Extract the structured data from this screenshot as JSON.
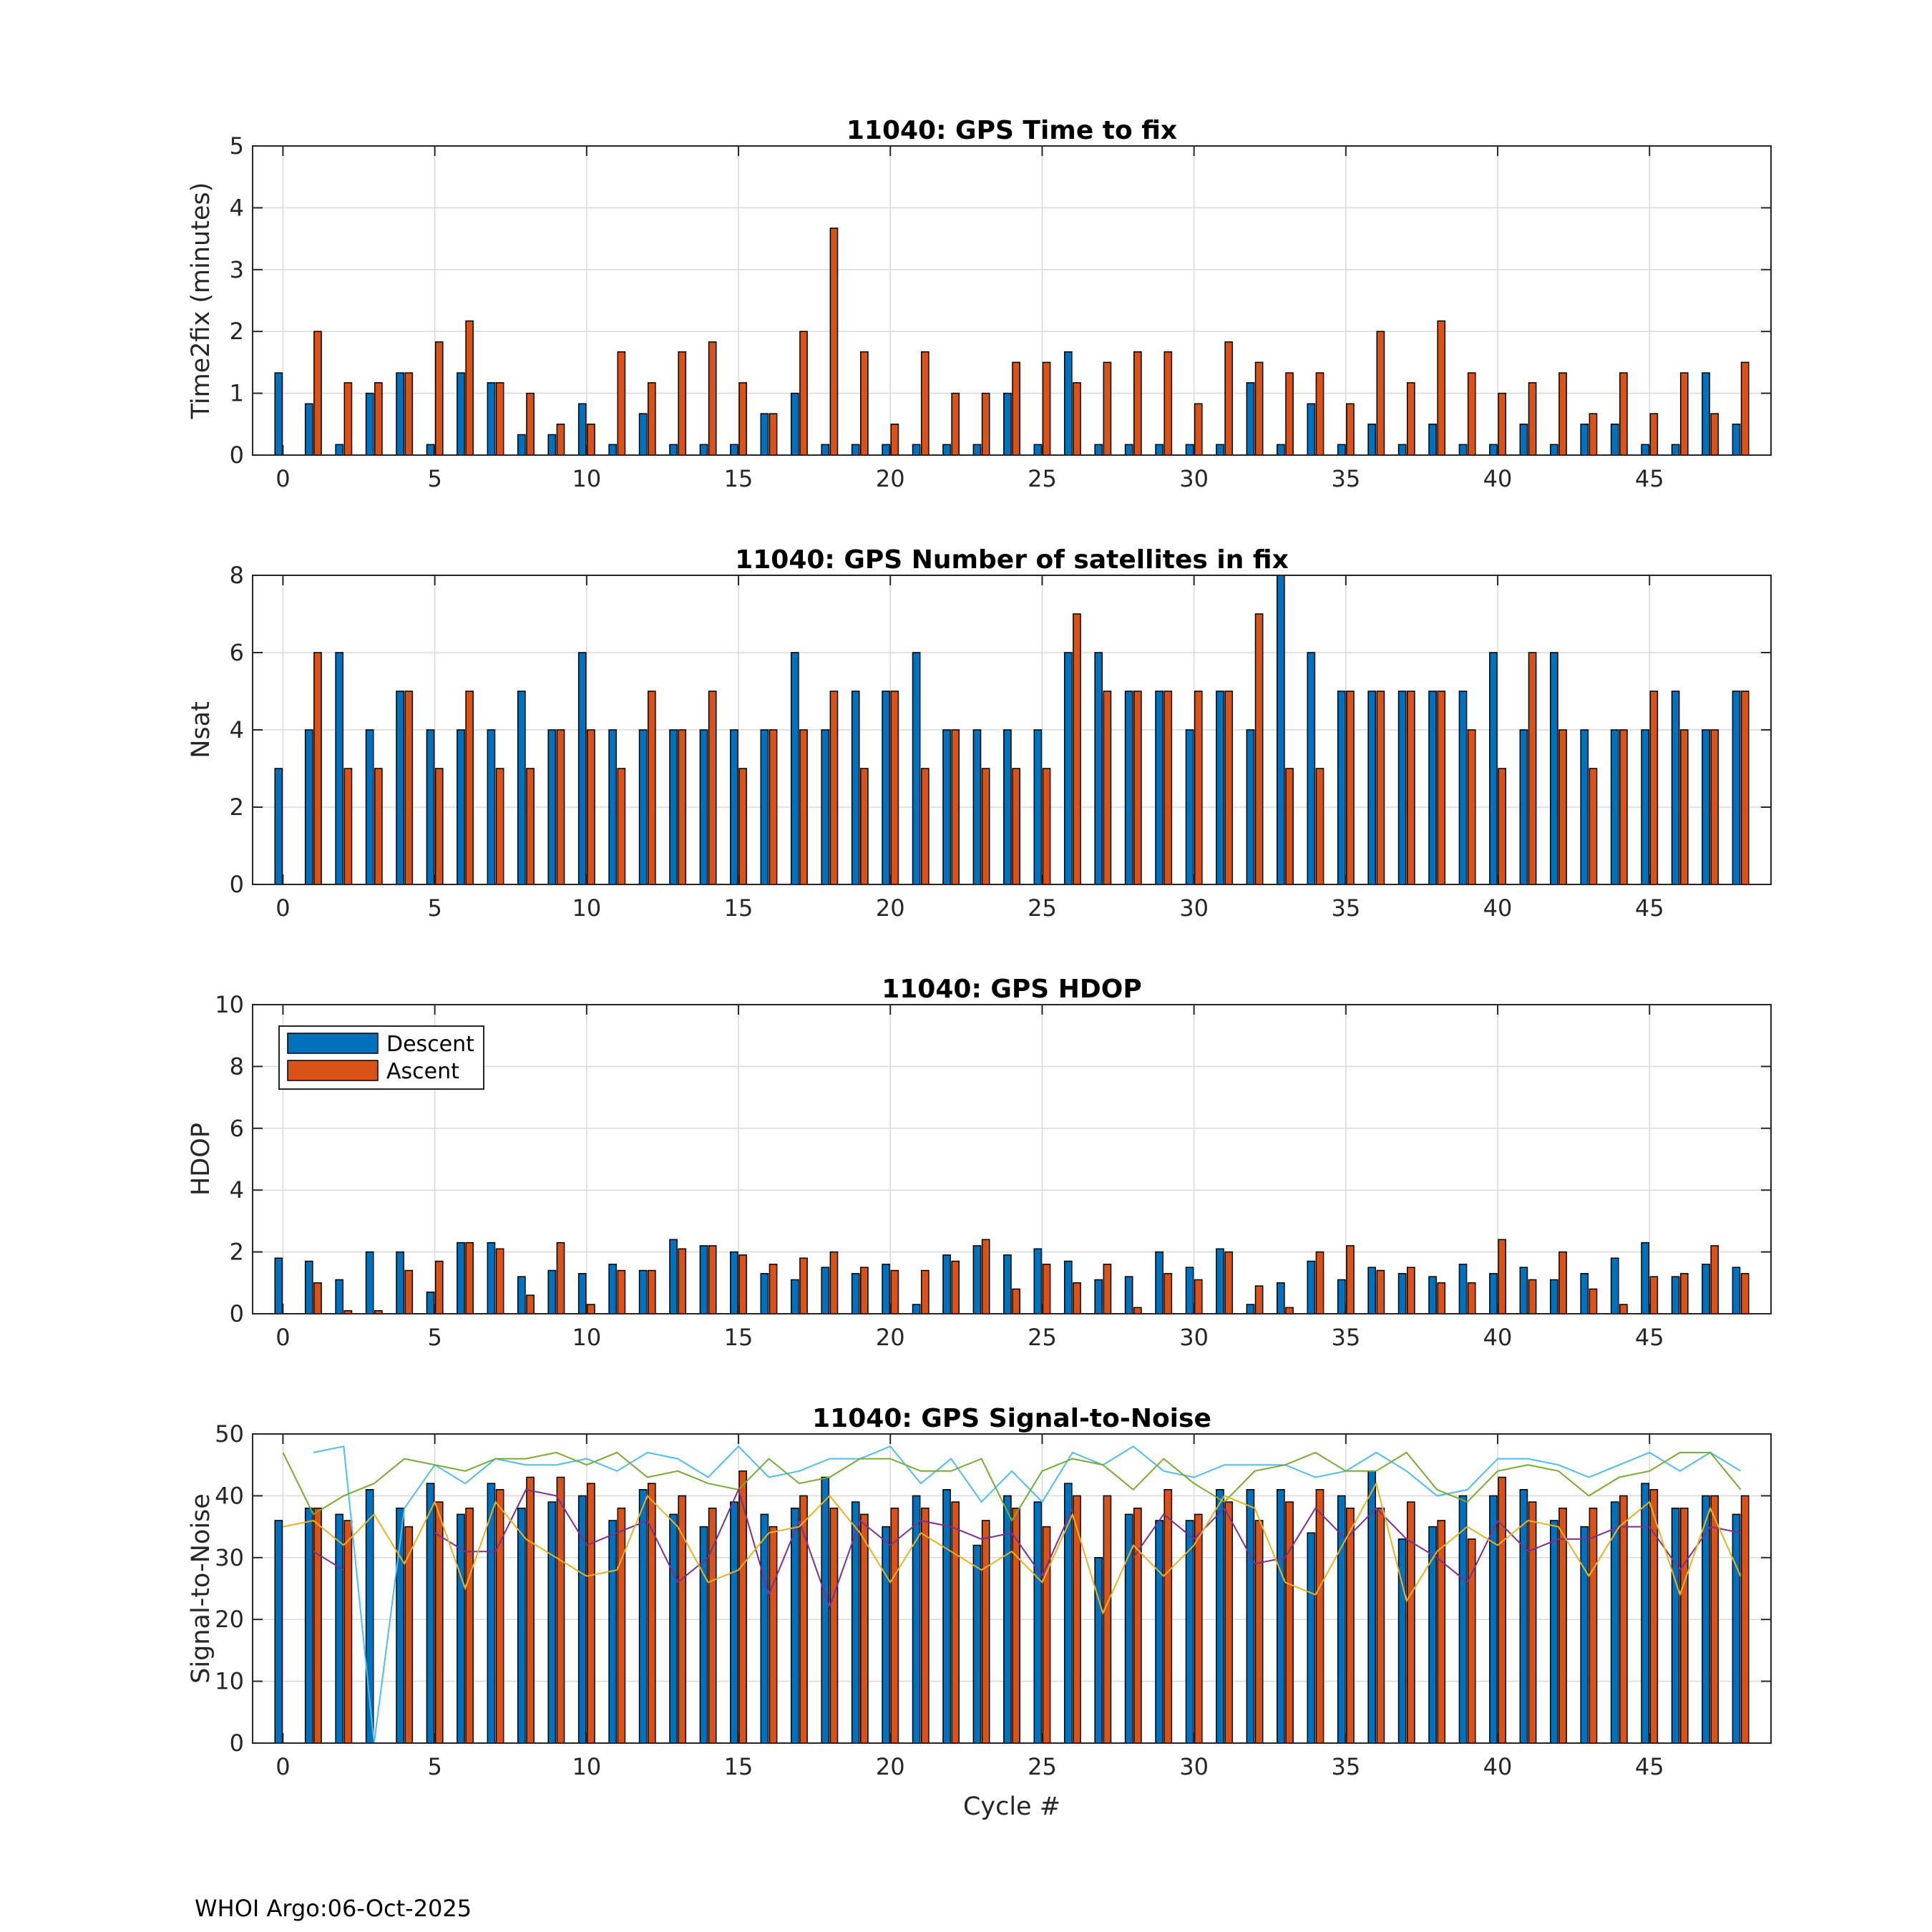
{
  "footer": "WHOI Argo:06-Oct-2025",
  "colors": {
    "descent": "#0072BD",
    "ascent": "#D95319",
    "grid": "#d9d9d9",
    "edge": "#000000",
    "sn_lines": [
      "#4DBEEE",
      "#77AC30",
      "#7E2F8E",
      "#EDB120"
    ]
  },
  "chart_data": [
    {
      "type": "bar",
      "title": "11040: GPS Time to fix",
      "xlabel": "",
      "ylabel": "Time2fix (minutes)",
      "xlim": [
        -1,
        49
      ],
      "ylim": [
        0,
        5
      ],
      "yticks": [
        0,
        1,
        2,
        3,
        4,
        5
      ],
      "xticks": [
        0,
        5,
        10,
        15,
        20,
        25,
        30,
        35,
        40,
        45
      ],
      "x": [
        0,
        1,
        2,
        3,
        4,
        5,
        6,
        7,
        8,
        9,
        10,
        11,
        12,
        13,
        14,
        15,
        16,
        17,
        18,
        19,
        20,
        21,
        22,
        23,
        24,
        25,
        26,
        27,
        28,
        29,
        30,
        31,
        32,
        33,
        34,
        35,
        36,
        37,
        38,
        39,
        40,
        41,
        42,
        43,
        44,
        45,
        46,
        47,
        48
      ],
      "series": [
        {
          "name": "Descent",
          "values": [
            1.33,
            0.83,
            0.17,
            1.0,
            1.33,
            0.17,
            1.33,
            1.17,
            0.33,
            0.33,
            0.83,
            0.17,
            0.67,
            0.17,
            0.17,
            0.17,
            0.67,
            1.0,
            0.17,
            0.17,
            0.17,
            0.17,
            0.17,
            0.17,
            1.0,
            0.17,
            1.67,
            0.17,
            0.17,
            0.17,
            0.17,
            0.17,
            1.17,
            0.17,
            0.83,
            0.17,
            0.5,
            0.17,
            0.5,
            0.17,
            0.17,
            0.5,
            0.17,
            0.5,
            0.5,
            0.17,
            0.17,
            1.33,
            0.5
          ]
        },
        {
          "name": "Ascent",
          "values": [
            null,
            2.0,
            1.17,
            1.17,
            1.33,
            1.83,
            2.17,
            1.17,
            1.0,
            0.5,
            0.5,
            1.67,
            1.17,
            1.67,
            1.83,
            1.17,
            0.67,
            2.0,
            3.67,
            1.67,
            0.5,
            1.67,
            1.0,
            1.0,
            1.5,
            1.5,
            1.17,
            1.5,
            1.67,
            1.67,
            0.83,
            1.83,
            1.5,
            1.33,
            1.33,
            0.83,
            2.0,
            1.17,
            2.17,
            1.33,
            1.0,
            1.17,
            1.33,
            0.67,
            1.33,
            0.67,
            1.33,
            0.67,
            1.5
          ]
        }
      ]
    },
    {
      "type": "bar",
      "title": "11040: GPS Number of satellites in fix",
      "xlabel": "",
      "ylabel": "Nsat",
      "xlim": [
        -1,
        49
      ],
      "ylim": [
        0,
        8
      ],
      "yticks": [
        0,
        2,
        4,
        6,
        8
      ],
      "xticks": [
        0,
        5,
        10,
        15,
        20,
        25,
        30,
        35,
        40,
        45
      ],
      "x": [
        0,
        1,
        2,
        3,
        4,
        5,
        6,
        7,
        8,
        9,
        10,
        11,
        12,
        13,
        14,
        15,
        16,
        17,
        18,
        19,
        20,
        21,
        22,
        23,
        24,
        25,
        26,
        27,
        28,
        29,
        30,
        31,
        32,
        33,
        34,
        35,
        36,
        37,
        38,
        39,
        40,
        41,
        42,
        43,
        44,
        45,
        46,
        47,
        48
      ],
      "series": [
        {
          "name": "Descent",
          "values": [
            3,
            4,
            6,
            4,
            5,
            4,
            4,
            4,
            5,
            4,
            6,
            4,
            4,
            4,
            4,
            4,
            4,
            6,
            4,
            5,
            5,
            6,
            4,
            4,
            4,
            4,
            6,
            6,
            5,
            5,
            4,
            5,
            4,
            8,
            6,
            5,
            5,
            5,
            5,
            5,
            6,
            4,
            6,
            4,
            4,
            4,
            5,
            4,
            5
          ]
        },
        {
          "name": "Ascent",
          "values": [
            null,
            6,
            3,
            3,
            5,
            3,
            5,
            3,
            3,
            4,
            4,
            3,
            5,
            4,
            5,
            3,
            4,
            4,
            5,
            3,
            5,
            3,
            4,
            3,
            3,
            3,
            7,
            5,
            5,
            5,
            5,
            5,
            7,
            3,
            3,
            5,
            5,
            5,
            5,
            4,
            3,
            6,
            4,
            3,
            4,
            5,
            4,
            4,
            5
          ]
        }
      ]
    },
    {
      "type": "bar",
      "title": "11040: GPS HDOP",
      "xlabel": "",
      "ylabel": "HDOP",
      "xlim": [
        -1,
        49
      ],
      "ylim": [
        0,
        10
      ],
      "yticks": [
        0,
        2,
        4,
        6,
        8,
        10
      ],
      "xticks": [
        0,
        5,
        10,
        15,
        20,
        25,
        30,
        35,
        40,
        45
      ],
      "legend": {
        "position": "top-left",
        "entries": [
          "Descent",
          "Ascent"
        ]
      },
      "x": [
        0,
        1,
        2,
        3,
        4,
        5,
        6,
        7,
        8,
        9,
        10,
        11,
        12,
        13,
        14,
        15,
        16,
        17,
        18,
        19,
        20,
        21,
        22,
        23,
        24,
        25,
        26,
        27,
        28,
        29,
        30,
        31,
        32,
        33,
        34,
        35,
        36,
        37,
        38,
        39,
        40,
        41,
        42,
        43,
        44,
        45,
        46,
        47,
        48
      ],
      "series": [
        {
          "name": "Descent",
          "values": [
            1.8,
            1.7,
            1.1,
            2.0,
            2.0,
            0.7,
            2.3,
            2.3,
            1.2,
            1.4,
            1.3,
            1.6,
            1.4,
            2.4,
            2.2,
            2.0,
            1.3,
            1.1,
            1.5,
            1.3,
            1.6,
            0.3,
            1.9,
            2.2,
            1.9,
            2.1,
            1.7,
            1.1,
            1.2,
            2.0,
            1.5,
            2.1,
            0.3,
            1.0,
            1.7,
            1.1,
            1.5,
            1.3,
            1.2,
            1.6,
            1.3,
            1.5,
            1.1,
            1.3,
            1.8,
            2.3,
            1.2,
            1.6,
            1.5
          ]
        },
        {
          "name": "Ascent",
          "values": [
            null,
            1.0,
            0.1,
            0.1,
            1.4,
            1.7,
            2.3,
            2.1,
            0.6,
            2.3,
            0.3,
            1.4,
            1.4,
            2.1,
            2.2,
            1.9,
            1.6,
            1.8,
            2.0,
            1.5,
            1.4,
            1.4,
            1.7,
            2.4,
            0.8,
            1.6,
            1.0,
            1.6,
            0.2,
            1.3,
            1.1,
            2.0,
            0.9,
            0.2,
            2.0,
            2.2,
            1.4,
            1.5,
            1.0,
            1.0,
            2.4,
            1.1,
            2.0,
            0.8,
            0.3,
            1.2,
            1.3,
            2.2,
            1.3
          ]
        }
      ]
    },
    {
      "type": "bar",
      "title": "11040: GPS Signal-to-Noise",
      "xlabel": "Cycle #",
      "ylabel": "Signal-to-Noise",
      "xlim": [
        -1,
        49
      ],
      "ylim": [
        0,
        50
      ],
      "yticks": [
        0,
        10,
        20,
        30,
        40,
        50
      ],
      "xticks": [
        0,
        5,
        10,
        15,
        20,
        25,
        30,
        35,
        40,
        45
      ],
      "x": [
        0,
        1,
        2,
        3,
        4,
        5,
        6,
        7,
        8,
        9,
        10,
        11,
        12,
        13,
        14,
        15,
        16,
        17,
        18,
        19,
        20,
        21,
        22,
        23,
        24,
        25,
        26,
        27,
        28,
        29,
        30,
        31,
        32,
        33,
        34,
        35,
        36,
        37,
        38,
        39,
        40,
        41,
        42,
        43,
        44,
        45,
        46,
        47,
        48
      ],
      "series": [
        {
          "name": "Descent",
          "values": [
            36,
            38,
            37,
            41,
            38,
            42,
            37,
            42,
            38,
            39,
            40,
            36,
            41,
            37,
            35,
            39,
            37,
            38,
            43,
            39,
            35,
            40,
            41,
            32,
            40,
            39,
            42,
            30,
            37,
            36,
            36,
            41,
            41,
            41,
            34,
            40,
            44,
            33,
            35,
            40,
            40,
            41,
            36,
            35,
            39,
            42,
            38,
            40,
            37
          ]
        },
        {
          "name": "Ascent",
          "values": [
            null,
            38,
            36,
            null,
            35,
            39,
            38,
            41,
            43,
            43,
            42,
            38,
            42,
            40,
            38,
            44,
            35,
            40,
            38,
            37,
            38,
            38,
            39,
            36,
            38,
            35,
            40,
            40,
            38,
            41,
            37,
            39,
            36,
            39,
            41,
            38,
            38,
            39,
            36,
            33,
            43,
            39,
            38,
            38,
            40,
            41,
            38,
            40,
            40
          ]
        }
      ],
      "lines": [
        {
          "name": "sat-line-1",
          "values": [
            null,
            47,
            48,
            0,
            38,
            45,
            42,
            46,
            45,
            45,
            46,
            44,
            47,
            46,
            43,
            48,
            43,
            44,
            46,
            46,
            48,
            42,
            46,
            39,
            44,
            39,
            47,
            45,
            48,
            44,
            43,
            45,
            45,
            45,
            43,
            44,
            47,
            44,
            40,
            41,
            46,
            46,
            45,
            43,
            45,
            47,
            44,
            47,
            44
          ]
        },
        {
          "name": "sat-line-2",
          "values": [
            47,
            37,
            40,
            42,
            46,
            45,
            44,
            46,
            46,
            47,
            45,
            47,
            43,
            44,
            42,
            41,
            46,
            42,
            43,
            46,
            46,
            44,
            44,
            46,
            36,
            44,
            46,
            45,
            41,
            46,
            42,
            39,
            44,
            45,
            47,
            44,
            44,
            47,
            41,
            39,
            44,
            45,
            44,
            40,
            43,
            44,
            47,
            47,
            41
          ]
        },
        {
          "name": "sat-line-3",
          "values": [
            null,
            31,
            28,
            null,
            null,
            34,
            31,
            31,
            41,
            40,
            32,
            34,
            36,
            26,
            30,
            41,
            24,
            36,
            22,
            36,
            32,
            36,
            35,
            33,
            34,
            27,
            38,
            null,
            30,
            37,
            33,
            38,
            29,
            30,
            38,
            33,
            38,
            33,
            30,
            26,
            36,
            31,
            33,
            33,
            35,
            35,
            28,
            35,
            34
          ]
        },
        {
          "name": "sat-line-4",
          "values": [
            35,
            36,
            32,
            37,
            29,
            39,
            25,
            39,
            33,
            30,
            27,
            28,
            40,
            35,
            26,
            28,
            34,
            35,
            40,
            34,
            26,
            34,
            31,
            28,
            31,
            26,
            37,
            21,
            32,
            27,
            32,
            40,
            38,
            26,
            24,
            33,
            42,
            23,
            31,
            35,
            32,
            36,
            35,
            27,
            35,
            39,
            24,
            38,
            27
          ]
        }
      ]
    }
  ]
}
